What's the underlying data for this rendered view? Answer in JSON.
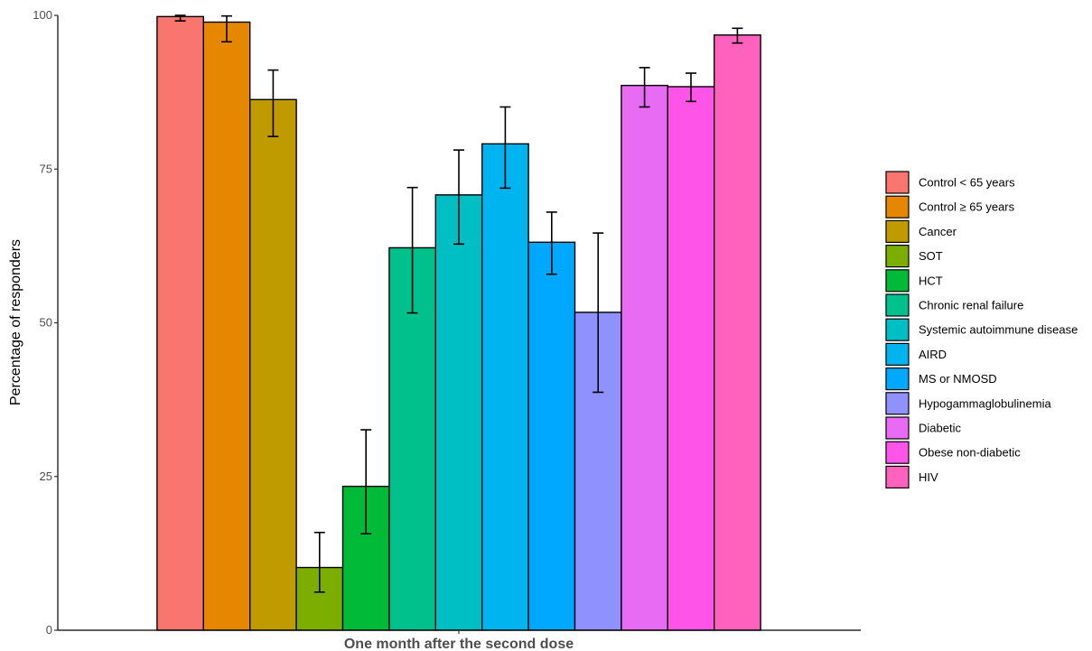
{
  "chart_data": {
    "type": "bar",
    "xlabel": "One month after the second dose",
    "ylabel": "Percentage of responders",
    "ylim": [
      0,
      100
    ],
    "yticks": [
      0,
      25,
      50,
      75,
      100
    ],
    "grid": false,
    "legend_position": "right",
    "series": [
      {
        "name": "Control < 65 years",
        "value": 99.8,
        "ci": [
          99.1,
          100.0
        ],
        "color": "#F8766D"
      },
      {
        "name": "Control ≥ 65 years",
        "value": 98.9,
        "ci": [
          95.7,
          99.9
        ],
        "color": "#E58700"
      },
      {
        "name": "Cancer",
        "value": 86.3,
        "ci": [
          80.3,
          91.1
        ],
        "color": "#C09B00"
      },
      {
        "name": "SOT",
        "value": 10.2,
        "ci": [
          6.2,
          15.9
        ],
        "color": "#7CAE00"
      },
      {
        "name": "HCT",
        "value": 23.4,
        "ci": [
          15.7,
          32.6
        ],
        "color": "#00BA38"
      },
      {
        "name": "Chronic renal failure",
        "value": 62.2,
        "ci": [
          51.6,
          72.0
        ],
        "color": "#00C08B"
      },
      {
        "name": "Systemic autoimmune disease",
        "value": 70.8,
        "ci": [
          62.8,
          78.1
        ],
        "color": "#00BFC4"
      },
      {
        "name": "AIRD",
        "value": 79.1,
        "ci": [
          71.9,
          85.1
        ],
        "color": "#00B4F0"
      },
      {
        "name": "MS or NMOSD",
        "value": 63.1,
        "ci": [
          57.9,
          68.0
        ],
        "color": "#00A9FF"
      },
      {
        "name": "Hypogammaglobulinemia",
        "value": 51.7,
        "ci": [
          38.7,
          64.6
        ],
        "color": "#8F91FF"
      },
      {
        "name": "Diabetic",
        "value": 88.6,
        "ci": [
          85.1,
          91.5
        ],
        "color": "#E76BF3"
      },
      {
        "name": "Obese non-diabetic",
        "value": 88.4,
        "ci": [
          86.0,
          90.6
        ],
        "color": "#FF54E8"
      },
      {
        "name": "HIV",
        "value": 96.8,
        "ci": [
          95.5,
          97.9
        ],
        "color": "#FF62BC"
      }
    ]
  }
}
